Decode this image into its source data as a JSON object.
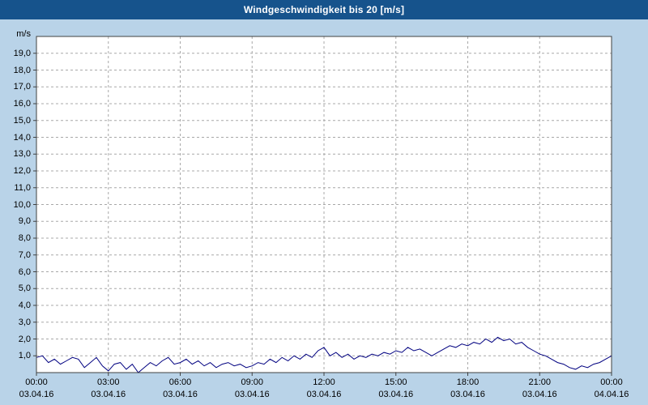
{
  "title": "Windgeschwindigkeit bis 20 [m/s]",
  "colors": {
    "titlebar_bg": "#16538c",
    "titlebar_text": "#ffffff",
    "page_bg": "#b9d3e8",
    "plot_bg": "#ffffff",
    "plot_border": "#404040",
    "gridline": "#a8a8a8",
    "line": "#000080"
  },
  "chart_data": {
    "type": "line",
    "title": "Windgeschwindigkeit bis 20 [m/s]",
    "ylabel_unit": "m/s",
    "ylim": [
      0,
      20
    ],
    "ytick_step": 1,
    "ytick_labels": [
      "19,0",
      "18,0",
      "17,0",
      "16,0",
      "15,0",
      "14,0",
      "13,0",
      "12,0",
      "11,0",
      "10,0",
      "9,0",
      "8,0",
      "7,0",
      "6,0",
      "5,0",
      "4,0",
      "3,0",
      "2,0",
      "1,0"
    ],
    "grid": "dashed",
    "legend": "none",
    "x_range_hours": [
      0,
      24
    ],
    "xtick_times": [
      "00:00",
      "03:00",
      "06:00",
      "09:00",
      "12:00",
      "15:00",
      "18:00",
      "21:00",
      "00:00"
    ],
    "xtick_dates": [
      "03.04.16",
      "03.04.16",
      "03.04.16",
      "03.04.16",
      "03.04.16",
      "03.04.16",
      "03.04.16",
      "03.04.16",
      "04.04.16"
    ],
    "series": [
      {
        "name": "Windgeschwindigkeit",
        "color": "#000080",
        "x_start_hours": 0,
        "x_step_hours": 0.25,
        "values": [
          0.9,
          1.0,
          0.6,
          0.8,
          0.5,
          0.7,
          0.9,
          0.8,
          0.3,
          0.6,
          0.9,
          0.4,
          0.1,
          0.5,
          0.6,
          0.2,
          0.5,
          0.0,
          0.3,
          0.6,
          0.4,
          0.7,
          0.9,
          0.5,
          0.6,
          0.8,
          0.5,
          0.7,
          0.4,
          0.6,
          0.3,
          0.5,
          0.6,
          0.4,
          0.5,
          0.3,
          0.4,
          0.6,
          0.5,
          0.8,
          0.6,
          0.9,
          0.7,
          1.0,
          0.8,
          1.1,
          0.9,
          1.3,
          1.5,
          1.0,
          1.2,
          0.9,
          1.1,
          0.8,
          1.0,
          0.9,
          1.1,
          1.0,
          1.2,
          1.1,
          1.3,
          1.2,
          1.5,
          1.3,
          1.4,
          1.2,
          1.0,
          1.2,
          1.4,
          1.6,
          1.5,
          1.7,
          1.6,
          1.8,
          1.7,
          2.0,
          1.8,
          2.1,
          1.9,
          2.0,
          1.7,
          1.8,
          1.5,
          1.3,
          1.1,
          1.0,
          0.8,
          0.6,
          0.5,
          0.3,
          0.2,
          0.4,
          0.3,
          0.5,
          0.6,
          0.8,
          1.0
        ]
      }
    ]
  }
}
